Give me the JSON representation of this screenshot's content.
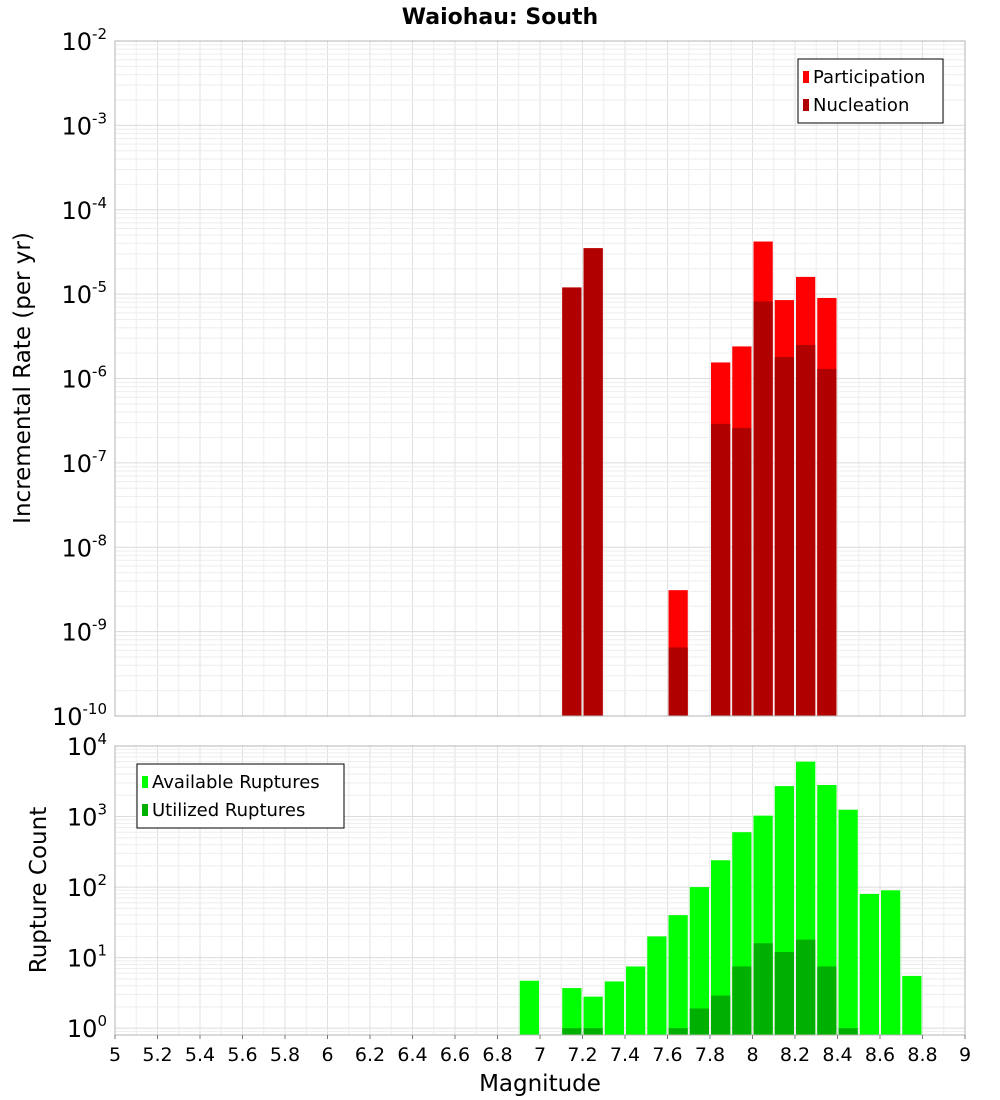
{
  "chart_data": [
    {
      "type": "bar",
      "title": "Waiohau: South",
      "xlabel": "Magnitude",
      "ylabel": "Incremental Rate (per yr)",
      "yscale": "log",
      "xlim": [
        5,
        9
      ],
      "ylim": [
        1e-10,
        0.01
      ],
      "y_tick_exponents": [
        "-10",
        "-9",
        "-8",
        "-7",
        "-6",
        "-5",
        "-4",
        "-3",
        "-2"
      ],
      "y_tick_base": "10",
      "bar_width": 0.1,
      "legend": {
        "position": "top-right"
      },
      "series": [
        {
          "name": "Participation",
          "color": "#ff0000",
          "points": [
            {
              "x": 7.15,
              "y": 1.2e-05
            },
            {
              "x": 7.25,
              "y": 3.5e-05
            },
            {
              "x": 7.65,
              "y": 3.1e-09
            },
            {
              "x": 7.85,
              "y": 1.55e-06
            },
            {
              "x": 7.95,
              "y": 2.4e-06
            },
            {
              "x": 8.05,
              "y": 4.2e-05
            },
            {
              "x": 8.15,
              "y": 8.5e-06
            },
            {
              "x": 8.25,
              "y": 1.6e-05
            },
            {
              "x": 8.35,
              "y": 9e-06
            }
          ]
        },
        {
          "name": "Nucleation",
          "color": "#b00000",
          "points": [
            {
              "x": 7.15,
              "y": 1.2e-05
            },
            {
              "x": 7.25,
              "y": 3.5e-05
            },
            {
              "x": 7.65,
              "y": 6.5e-10
            },
            {
              "x": 7.85,
              "y": 2.9e-07
            },
            {
              "x": 7.95,
              "y": 2.6e-07
            },
            {
              "x": 8.05,
              "y": 8.2e-06
            },
            {
              "x": 8.15,
              "y": 1.8e-06
            },
            {
              "x": 8.25,
              "y": 2.5e-06
            },
            {
              "x": 8.35,
              "y": 1.3e-06
            }
          ]
        }
      ]
    },
    {
      "type": "bar",
      "title": "",
      "xlabel": "Magnitude",
      "ylabel": "Rupture Count",
      "yscale": "log",
      "xlim": [
        5,
        9
      ],
      "ylim": [
        0.8,
        10000
      ],
      "x_ticks": [
        "5",
        "5.2",
        "5.4",
        "5.6",
        "5.8",
        "6",
        "6.2",
        "6.4",
        "6.6",
        "6.8",
        "7",
        "7.2",
        "7.4",
        "7.6",
        "7.8",
        "8",
        "8.2",
        "8.4",
        "8.6",
        "8.8",
        "9"
      ],
      "y_tick_exponents": [
        "0",
        "1",
        "2",
        "3",
        "4"
      ],
      "y_tick_base": "10",
      "bar_width": 0.1,
      "legend": {
        "position": "top-left"
      },
      "series": [
        {
          "name": "Available Ruptures",
          "color": "#00ff00",
          "points": [
            {
              "x": 6.95,
              "y": 4.7
            },
            {
              "x": 7.15,
              "y": 3.7
            },
            {
              "x": 7.25,
              "y": 2.8
            },
            {
              "x": 7.35,
              "y": 4.6
            },
            {
              "x": 7.45,
              "y": 7.5
            },
            {
              "x": 7.55,
              "y": 20
            },
            {
              "x": 7.65,
              "y": 40
            },
            {
              "x": 7.75,
              "y": 100
            },
            {
              "x": 7.85,
              "y": 240
            },
            {
              "x": 7.95,
              "y": 600
            },
            {
              "x": 8.05,
              "y": 1030
            },
            {
              "x": 8.15,
              "y": 2700
            },
            {
              "x": 8.25,
              "y": 6000
            },
            {
              "x": 8.35,
              "y": 2800
            },
            {
              "x": 8.45,
              "y": 1250
            },
            {
              "x": 8.55,
              "y": 80
            },
            {
              "x": 8.65,
              "y": 90
            },
            {
              "x": 8.75,
              "y": 5.5
            }
          ]
        },
        {
          "name": "Utilized Ruptures",
          "color": "#00b000",
          "points": [
            {
              "x": 7.15,
              "y": 1
            },
            {
              "x": 7.25,
              "y": 1
            },
            {
              "x": 7.65,
              "y": 1
            },
            {
              "x": 7.75,
              "y": 1.9
            },
            {
              "x": 7.85,
              "y": 2.9
            },
            {
              "x": 7.95,
              "y": 7.5
            },
            {
              "x": 8.05,
              "y": 16
            },
            {
              "x": 8.15,
              "y": 12
            },
            {
              "x": 8.25,
              "y": 18
            },
            {
              "x": 8.35,
              "y": 7.5
            },
            {
              "x": 8.45,
              "y": 1
            }
          ]
        }
      ]
    }
  ]
}
